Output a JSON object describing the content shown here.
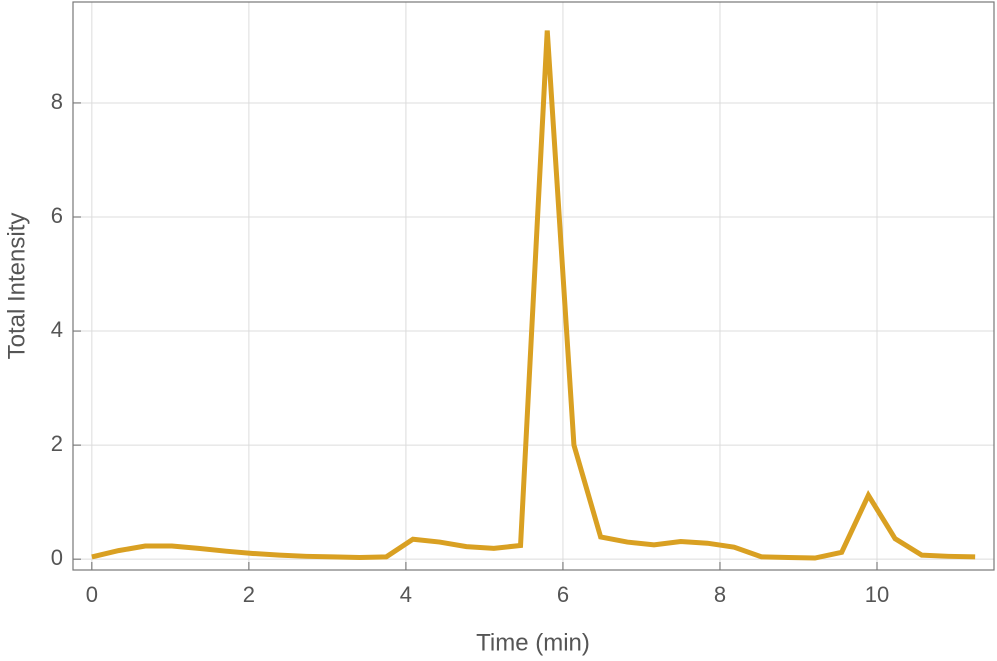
{
  "chart_data": {
    "type": "line",
    "x_label": "Time (min)",
    "y_label": "Total Intensity",
    "x": [
      0,
      0.34,
      0.68,
      1.02,
      1.36,
      1.71,
      2.05,
      2.39,
      2.73,
      3.07,
      3.41,
      3.75,
      4.09,
      4.43,
      4.77,
      5.12,
      5.46,
      5.8,
      6.14,
      6.48,
      6.82,
      7.16,
      7.5,
      7.84,
      8.18,
      8.53,
      8.87,
      9.21,
      9.55,
      9.89,
      10.23,
      10.57,
      10.91,
      11.25
    ],
    "series": [
      {
        "color": "#d9a022",
        "values": [
          0.04,
          0.15,
          0.23,
          0.23,
          0.19,
          0.14,
          0.1,
          0.07,
          0.05,
          0.04,
          0.03,
          0.04,
          0.35,
          0.3,
          0.22,
          0.19,
          0.24,
          9.27,
          2.0,
          0.39,
          0.3,
          0.25,
          0.31,
          0.28,
          0.21,
          0.04,
          0.03,
          0.02,
          0.12,
          1.12,
          0.36,
          0.07,
          0.05,
          0.04
        ]
      }
    ],
    "xlim": [
      -0.24,
      11.49
    ],
    "ylim": [
      -0.19,
      9.77
    ],
    "xticks": [
      0,
      2,
      4,
      6,
      8,
      10
    ],
    "yticks": [
      0,
      2,
      4,
      6,
      8
    ],
    "grid": true
  }
}
